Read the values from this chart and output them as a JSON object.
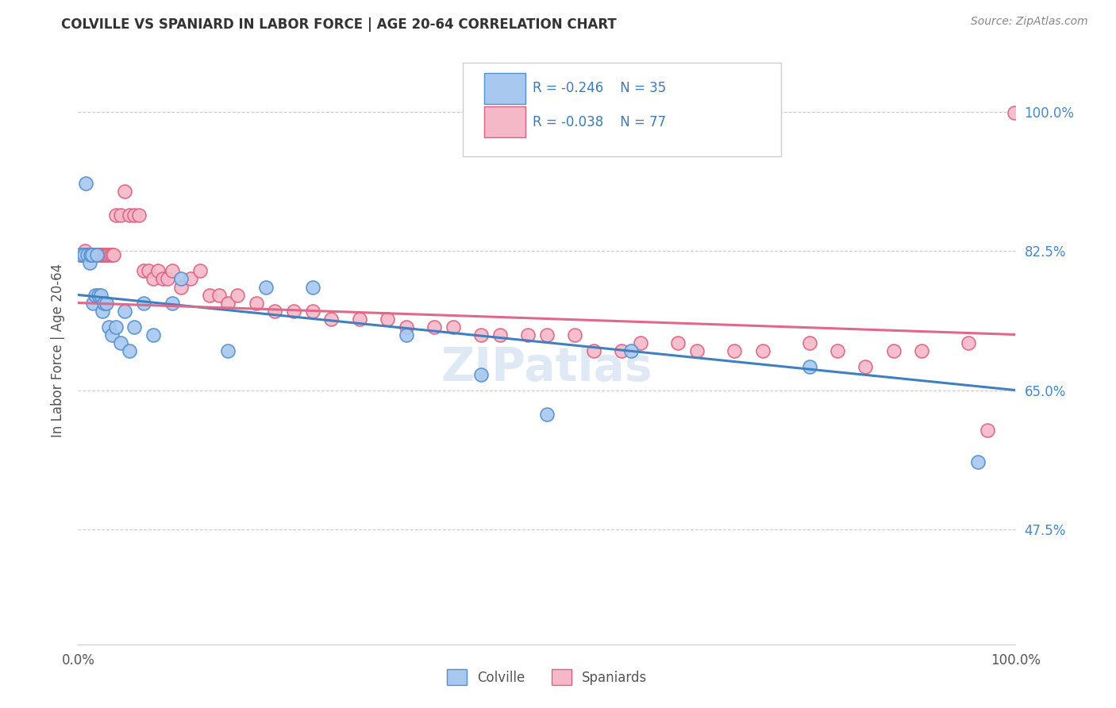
{
  "title": "COLVILLE VS SPANIARD IN LABOR FORCE | AGE 20-64 CORRELATION CHART",
  "source": "Source: ZipAtlas.com",
  "ylabel": "In Labor Force | Age 20-64",
  "ytick_values": [
    0.475,
    0.65,
    0.825,
    1.0
  ],
  "ytick_labels": [
    "47.5%",
    "65.0%",
    "82.5%",
    "100.0%"
  ],
  "xlim": [
    0.0,
    1.0
  ],
  "ylim": [
    0.33,
    1.07
  ],
  "legend_blue_r": "R = -0.246",
  "legend_blue_n": "N = 35",
  "legend_pink_r": "R = -0.038",
  "legend_pink_n": "N = 77",
  "colville_color": "#a8c8f0",
  "spaniard_color": "#f5b8c8",
  "colville_edge_color": "#5090d0",
  "spaniard_edge_color": "#e06080",
  "colville_line_color": "#4080c0",
  "spaniard_line_color": "#e06888",
  "watermark": "ZIPatlas",
  "colville_x": [
    0.003,
    0.006,
    0.008,
    0.01,
    0.012,
    0.013,
    0.015,
    0.016,
    0.018,
    0.02,
    0.022,
    0.024,
    0.026,
    0.028,
    0.03,
    0.033,
    0.036,
    0.04,
    0.045,
    0.05,
    0.055,
    0.06,
    0.07,
    0.08,
    0.1,
    0.11,
    0.16,
    0.2,
    0.25,
    0.35,
    0.43,
    0.5,
    0.59,
    0.78,
    0.96
  ],
  "colville_y": [
    0.82,
    0.82,
    0.91,
    0.82,
    0.81,
    0.82,
    0.82,
    0.76,
    0.77,
    0.82,
    0.77,
    0.77,
    0.75,
    0.76,
    0.76,
    0.73,
    0.72,
    0.73,
    0.71,
    0.75,
    0.7,
    0.73,
    0.76,
    0.72,
    0.76,
    0.79,
    0.7,
    0.78,
    0.78,
    0.72,
    0.67,
    0.62,
    0.7,
    0.68,
    0.56
  ],
  "spaniard_x": [
    0.002,
    0.003,
    0.005,
    0.006,
    0.007,
    0.008,
    0.009,
    0.01,
    0.011,
    0.012,
    0.013,
    0.014,
    0.015,
    0.016,
    0.017,
    0.018,
    0.019,
    0.02,
    0.022,
    0.024,
    0.026,
    0.028,
    0.03,
    0.032,
    0.034,
    0.036,
    0.038,
    0.04,
    0.045,
    0.05,
    0.055,
    0.06,
    0.065,
    0.07,
    0.075,
    0.08,
    0.085,
    0.09,
    0.095,
    0.1,
    0.11,
    0.12,
    0.13,
    0.14,
    0.15,
    0.16,
    0.17,
    0.19,
    0.21,
    0.23,
    0.25,
    0.27,
    0.3,
    0.33,
    0.35,
    0.38,
    0.4,
    0.43,
    0.45,
    0.48,
    0.5,
    0.53,
    0.55,
    0.58,
    0.6,
    0.64,
    0.66,
    0.7,
    0.73,
    0.78,
    0.81,
    0.84,
    0.87,
    0.9,
    0.95,
    0.97,
    0.999
  ],
  "spaniard_y": [
    0.82,
    0.82,
    0.82,
    0.82,
    0.825,
    0.82,
    0.82,
    0.82,
    0.82,
    0.82,
    0.82,
    0.82,
    0.82,
    0.82,
    0.82,
    0.82,
    0.82,
    0.82,
    0.82,
    0.82,
    0.82,
    0.82,
    0.82,
    0.82,
    0.82,
    0.82,
    0.82,
    0.87,
    0.87,
    0.9,
    0.87,
    0.87,
    0.87,
    0.8,
    0.8,
    0.79,
    0.8,
    0.79,
    0.79,
    0.8,
    0.78,
    0.79,
    0.8,
    0.77,
    0.77,
    0.76,
    0.77,
    0.76,
    0.75,
    0.75,
    0.75,
    0.74,
    0.74,
    0.74,
    0.73,
    0.73,
    0.73,
    0.72,
    0.72,
    0.72,
    0.72,
    0.72,
    0.7,
    0.7,
    0.71,
    0.71,
    0.7,
    0.7,
    0.7,
    0.71,
    0.7,
    0.68,
    0.7,
    0.7,
    0.71,
    0.6,
    0.999
  ]
}
